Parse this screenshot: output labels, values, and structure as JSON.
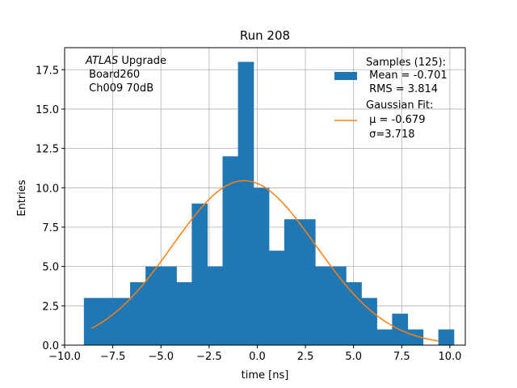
{
  "chart_data": {
    "type": "bar",
    "title": "Run 208",
    "xlabel": "time [ns]",
    "ylabel": "Entries",
    "xlim": [
      -10.0,
      10.8
    ],
    "ylim": [
      0.0,
      18.9
    ],
    "xticks": [
      -10.0,
      -7.5,
      -5.0,
      -2.5,
      0.0,
      2.5,
      5.0,
      7.5,
      10.0
    ],
    "xtick_labels": [
      "−10.0",
      "−7.5",
      "−5.0",
      "−2.5",
      "0.0",
      "2.5",
      "5.0",
      "7.5",
      "10.0"
    ],
    "yticks": [
      0.0,
      2.5,
      5.0,
      7.5,
      10.0,
      12.5,
      15.0,
      17.5
    ],
    "ytick_labels": [
      "0.0",
      "2.5",
      "5.0",
      "7.5",
      "10.0",
      "12.5",
      "15.0",
      "17.5"
    ],
    "grid": true,
    "legend_position": "top-right",
    "series": [
      {
        "name": "Samples (125):\n Mean = -0.701\n RMS = 3.814",
        "kind": "histogram",
        "color": "#1f77b4",
        "bin_edges": [
          -9.0,
          -8.2,
          -7.4,
          -6.6,
          -5.8,
          -5.0,
          -4.2,
          -3.4,
          -2.6,
          -1.8,
          -1.0,
          -0.2,
          0.6,
          1.4,
          2.2,
          3.0,
          3.8,
          4.6,
          5.4,
          6.2,
          7.0,
          7.8,
          8.6,
          9.4,
          10.2
        ],
        "counts": [
          3,
          3,
          3,
          4,
          5,
          5,
          4,
          9,
          5,
          12,
          18,
          10,
          6,
          8,
          8,
          5,
          5,
          4,
          3,
          1,
          2,
          1,
          0,
          1
        ]
      },
      {
        "name": "Gaussian Fit:\n μ = -0.679\n σ=3.718",
        "kind": "line",
        "color": "#ff7f0e",
        "x_range": [
          -8.6,
          9.4
        ],
        "amplitude": 10.45,
        "mu": -0.679,
        "sigma": 3.718
      }
    ],
    "legend": {
      "hist_lines": [
        "Samples (125):",
        " Mean = -0.701",
        " RMS = 3.814"
      ],
      "fit_lines": [
        "Gaussian Fit:",
        " μ = -0.679",
        " σ=3.718"
      ]
    },
    "annotation": {
      "italic": "ATLAS",
      "rest": " Upgrade",
      "lines": [
        " Board260",
        " Ch009 70dB"
      ]
    }
  }
}
